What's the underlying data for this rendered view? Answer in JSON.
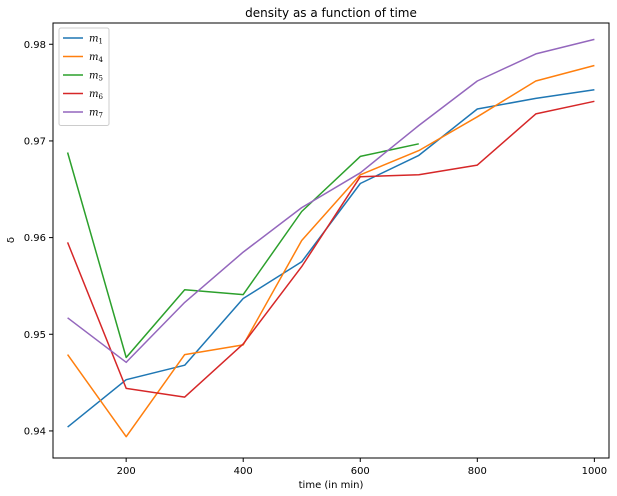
{
  "chart_data": {
    "type": "line",
    "title": "density as a function of time",
    "xlabel": "time (in min)",
    "ylabel": "δ",
    "xlim": [
      75,
      1025
    ],
    "ylim": [
      0.9372,
      0.9822
    ],
    "xticks": [
      200,
      400,
      600,
      800,
      1000
    ],
    "yticks": [
      0.94,
      0.95,
      0.96,
      0.97,
      0.98
    ],
    "ytick_labels": [
      "0.94",
      "0.95",
      "0.96",
      "0.97",
      "0.98"
    ],
    "grid": false,
    "legend_position": "top-left",
    "series": [
      {
        "name": "m",
        "subscript": "1",
        "color": "#1f77b4",
        "x": [
          100,
          200,
          300,
          400,
          500,
          600,
          700,
          800,
          900,
          1000
        ],
        "values": [
          0.9404,
          0.9453,
          0.9468,
          0.9537,
          0.9575,
          0.9656,
          0.9685,
          0.9733,
          0.9744,
          0.9753
        ]
      },
      {
        "name": "m",
        "subscript": "4",
        "color": "#ff7f0e",
        "x": [
          100,
          200,
          300,
          400,
          500,
          600,
          700,
          800,
          900,
          1000
        ],
        "values": [
          0.9479,
          0.9394,
          0.9479,
          0.9489,
          0.9597,
          0.9665,
          0.969,
          0.9725,
          0.9762,
          0.9778
        ]
      },
      {
        "name": "m",
        "subscript": "5",
        "color": "#2ca02c",
        "x": [
          100,
          200,
          300,
          400,
          500,
          600,
          700
        ],
        "values": [
          0.9688,
          0.9476,
          0.9546,
          0.9541,
          0.9627,
          0.9684,
          0.9697
        ]
      },
      {
        "name": "m",
        "subscript": "6",
        "color": "#d62728",
        "x": [
          100,
          200,
          300,
          400,
          500,
          600,
          700,
          800,
          900,
          1000
        ],
        "values": [
          0.9595,
          0.9444,
          0.9435,
          0.949,
          0.957,
          0.9663,
          0.9665,
          0.9675,
          0.9728,
          0.9741
        ]
      },
      {
        "name": "m",
        "subscript": "7",
        "color": "#9467bd",
        "x": [
          100,
          200,
          300,
          400,
          500,
          600,
          700,
          800,
          900,
          1000
        ],
        "values": [
          0.9517,
          0.9471,
          0.9533,
          0.9585,
          0.9631,
          0.9667,
          0.9716,
          0.9762,
          0.979,
          0.9805
        ]
      }
    ]
  }
}
